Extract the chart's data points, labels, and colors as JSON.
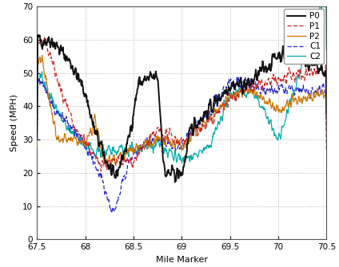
{
  "title": "",
  "xlabel": "Mile Marker",
  "ylabel": "Speed (MPH)",
  "xlim": [
    67.5,
    70.5
  ],
  "ylim": [
    0,
    70
  ],
  "xticks": [
    67.5,
    68.0,
    68.5,
    69.0,
    69.5,
    70.0,
    70.5
  ],
  "yticks": [
    0,
    10,
    20,
    30,
    40,
    50,
    60,
    70
  ],
  "bg_color": "#ffffff",
  "fig_color": "#ffffff",
  "grid_color": "#b0b0b0",
  "line_styles": {
    "P0": {
      "color": "#111111",
      "linewidth": 1.4
    },
    "P1": {
      "color": "#cc2222",
      "linewidth": 0.9
    },
    "P2": {
      "color": "#cc7700",
      "linewidth": 0.9
    },
    "C1": {
      "color": "#2222cc",
      "linewidth": 0.9
    },
    "C2": {
      "color": "#00aaaa",
      "linewidth": 0.9
    }
  },
  "legend_loc": "upper right",
  "seed": 42
}
